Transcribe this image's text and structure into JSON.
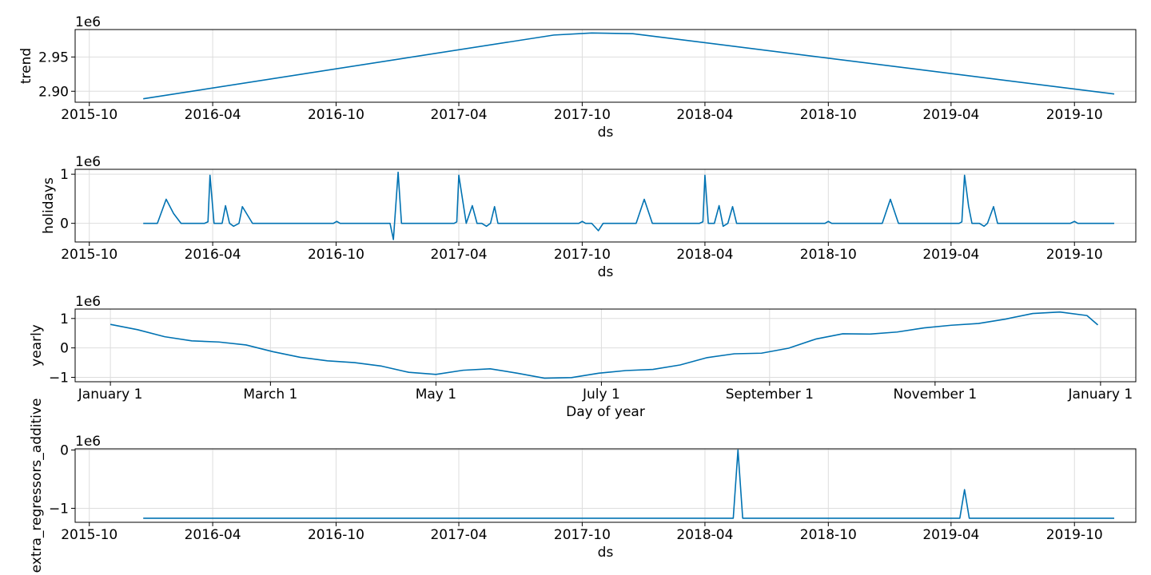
{
  "figure": {
    "line_color": "#0072B2",
    "grid_color": "#dddddd",
    "grid": true
  },
  "chart_data": [
    {
      "type": "line",
      "id": "trend",
      "xlabel": "ds",
      "ylabel": "trend",
      "offset_label": "1e6",
      "x_axis": "date",
      "xlim": [
        "2015-09-10",
        "2019-12-31"
      ],
      "ylim": [
        2.884,
        2.99
      ],
      "xticks": [
        "2015-10-01",
        "2016-04-01",
        "2016-10-01",
        "2017-04-01",
        "2017-10-01",
        "2018-04-01",
        "2018-10-01",
        "2019-04-01",
        "2019-10-01"
      ],
      "xtick_labels": [
        "2015-10",
        "2016-04",
        "2016-10",
        "2017-04",
        "2017-10",
        "2018-04",
        "2018-10",
        "2019-04",
        "2019-10"
      ],
      "yticks": [
        2.9,
        2.95
      ],
      "ytick_labels": [
        "2.90",
        "2.95"
      ],
      "series": [
        {
          "x": [
            "2015-12-20",
            "2017-08-20",
            "2017-10-15",
            "2017-12-15",
            "2019-11-29"
          ],
          "y": [
            2.889,
            2.982,
            2.985,
            2.984,
            2.896
          ]
        }
      ]
    },
    {
      "type": "line",
      "id": "holidays",
      "xlabel": "ds",
      "ylabel": "holidays",
      "offset_label": "1e6",
      "x_axis": "date",
      "xlim": [
        "2015-09-10",
        "2019-12-31"
      ],
      "ylim": [
        -0.38,
        1.1
      ],
      "xticks": [
        "2015-10-01",
        "2016-04-01",
        "2016-10-01",
        "2017-04-01",
        "2017-10-01",
        "2018-04-01",
        "2018-10-01",
        "2019-04-01",
        "2019-10-01"
      ],
      "xtick_labels": [
        "2015-10",
        "2016-04",
        "2016-10",
        "2017-04",
        "2017-10",
        "2018-04",
        "2018-10",
        "2019-04",
        "2019-10"
      ],
      "yticks": [
        0,
        1
      ],
      "ytick_labels": [
        "0",
        "1"
      ],
      "series": [
        {
          "x": [
            "2015-12-20",
            "2016-01-10",
            "2016-01-23",
            "2016-02-03",
            "2016-02-14",
            "2016-03-20",
            "2016-03-25",
            "2016-03-28",
            "2016-04-03",
            "2016-04-15",
            "2016-04-20",
            "2016-04-26",
            "2016-05-02",
            "2016-05-10",
            "2016-05-15",
            "2016-05-30",
            "2016-09-27",
            "2016-10-02",
            "2016-10-07",
            "2016-12-20",
            "2016-12-25",
            "2017-01-01",
            "2017-01-06",
            "2017-03-25",
            "2017-03-29",
            "2017-04-01",
            "2017-04-12",
            "2017-04-21",
            "2017-04-28",
            "2017-05-05",
            "2017-05-12",
            "2017-05-18",
            "2017-05-24",
            "2017-05-29",
            "2017-09-26",
            "2017-10-01",
            "2017-10-06",
            "2017-10-15",
            "2017-10-25",
            "2017-11-01",
            "2017-12-20",
            "2018-01-01",
            "2018-01-13",
            "2018-03-24",
            "2018-03-29",
            "2018-04-01",
            "2018-04-06",
            "2018-04-15",
            "2018-04-22",
            "2018-04-28",
            "2018-05-05",
            "2018-05-12",
            "2018-05-18",
            "2018-09-26",
            "2018-10-01",
            "2018-10-06",
            "2018-12-20",
            "2019-01-01",
            "2019-01-13",
            "2019-04-13",
            "2019-04-17",
            "2019-04-21",
            "2019-04-27",
            "2019-05-02",
            "2019-05-13",
            "2019-05-20",
            "2019-05-25",
            "2019-06-03",
            "2019-06-09",
            "2019-09-25",
            "2019-10-01",
            "2019-10-06",
            "2019-11-29"
          ],
          "y": [
            0,
            0,
            0.49,
            0.2,
            0,
            0,
            0.03,
            0.98,
            0,
            0,
            0.36,
            0,
            -0.06,
            0,
            0.34,
            0,
            0,
            0.04,
            0,
            0,
            -0.33,
            1.04,
            0,
            0,
            0.03,
            0.98,
            0,
            0.36,
            0,
            0,
            -0.06,
            0,
            0.34,
            0,
            0,
            0.04,
            0,
            0,
            -0.15,
            0,
            0,
            0.49,
            0,
            0,
            0.03,
            0.98,
            0,
            0,
            0.36,
            -0.06,
            0,
            0.34,
            0,
            0,
            0.04,
            0,
            0,
            0.49,
            0,
            0,
            0.03,
            0.98,
            0.35,
            0,
            0,
            -0.06,
            0,
            0.34,
            0,
            0,
            0.04,
            0,
            0
          ]
        }
      ]
    },
    {
      "type": "line",
      "id": "yearly",
      "xlabel": "Day of year",
      "ylabel": "yearly",
      "offset_label": "1e6",
      "x_axis": "date",
      "xlim": [
        "2016-12-19",
        "2018-01-14"
      ],
      "ylim": [
        -1.15,
        1.32
      ],
      "xticks": [
        "2017-01-01",
        "2017-03-01",
        "2017-05-01",
        "2017-07-01",
        "2017-09-01",
        "2017-11-01",
        "2018-01-01"
      ],
      "xtick_labels": [
        "January 1",
        "March 1",
        "May 1",
        "July 1",
        "September 1",
        "November 1",
        "January 1"
      ],
      "yticks": [
        -1,
        0,
        1
      ],
      "ytick_labels": [
        "−1",
        "0",
        "1"
      ],
      "series": [
        {
          "x": [
            "2017-01-01",
            "2017-01-11",
            "2017-01-21",
            "2017-01-31",
            "2017-02-10",
            "2017-02-20",
            "2017-03-02",
            "2017-03-12",
            "2017-03-22",
            "2017-04-01",
            "2017-04-11",
            "2017-04-21",
            "2017-05-01",
            "2017-05-11",
            "2017-05-21",
            "2017-05-31",
            "2017-06-10",
            "2017-06-20",
            "2017-06-30",
            "2017-07-10",
            "2017-07-20",
            "2017-07-30",
            "2017-08-09",
            "2017-08-19",
            "2017-08-29",
            "2017-09-08",
            "2017-09-18",
            "2017-09-28",
            "2017-10-08",
            "2017-10-18",
            "2017-10-28",
            "2017-11-07",
            "2017-11-17",
            "2017-11-27",
            "2017-12-07",
            "2017-12-17",
            "2017-12-27",
            "2017-12-31"
          ],
          "y": [
            0.8,
            0.62,
            0.38,
            0.24,
            0.2,
            0.1,
            -0.13,
            -0.32,
            -0.44,
            -0.5,
            -0.62,
            -0.83,
            -0.9,
            -0.76,
            -0.71,
            -0.86,
            -1.03,
            -1.01,
            -0.86,
            -0.77,
            -0.73,
            -0.58,
            -0.33,
            -0.2,
            -0.18,
            -0.01,
            0.3,
            0.48,
            0.47,
            0.54,
            0.68,
            0.77,
            0.83,
            0.98,
            1.17,
            1.22,
            1.1,
            0.78
          ]
        }
      ]
    },
    {
      "type": "line",
      "id": "extra_regressors_additive",
      "xlabel": "ds",
      "ylabel": "extra_regressors_additive",
      "offset_label": "1e6",
      "x_axis": "date",
      "xlim": [
        "2015-09-10",
        "2019-12-31"
      ],
      "ylim": [
        -1.24,
        0.02
      ],
      "xticks": [
        "2015-10-01",
        "2016-04-01",
        "2016-10-01",
        "2017-04-01",
        "2017-10-01",
        "2018-04-01",
        "2018-10-01",
        "2019-04-01",
        "2019-10-01"
      ],
      "xtick_labels": [
        "2015-10",
        "2016-04",
        "2016-10",
        "2017-04",
        "2017-10",
        "2018-04",
        "2018-10",
        "2019-04",
        "2019-10"
      ],
      "yticks": [
        -1,
        0
      ],
      "ytick_labels": [
        "−1",
        "0"
      ],
      "series": [
        {
          "x": [
            "2015-12-20",
            "2018-05-13",
            "2018-05-20",
            "2018-05-27",
            "2019-04-14",
            "2019-04-21",
            "2019-04-28",
            "2019-11-29"
          ],
          "y": [
            -1.17,
            -1.17,
            0.0,
            -1.17,
            -1.17,
            -0.68,
            -1.17,
            -1.17
          ]
        }
      ]
    }
  ]
}
